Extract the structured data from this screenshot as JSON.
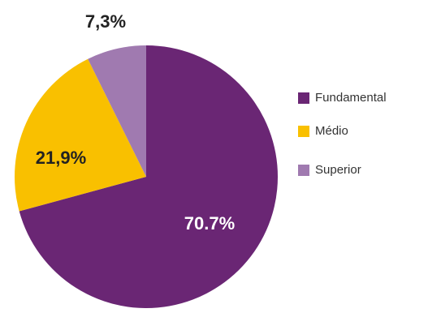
{
  "chart_data": {
    "type": "pie",
    "categories": [
      "Fundamental",
      "Médio",
      "Superior"
    ],
    "values": [
      70.7,
      21.9,
      7.3
    ],
    "value_labels": [
      "70.7%",
      "21,9%",
      "7,3%"
    ],
    "colors": [
      "#6a2674",
      "#f9c000",
      "#a07ab0"
    ],
    "legend": "right"
  }
}
